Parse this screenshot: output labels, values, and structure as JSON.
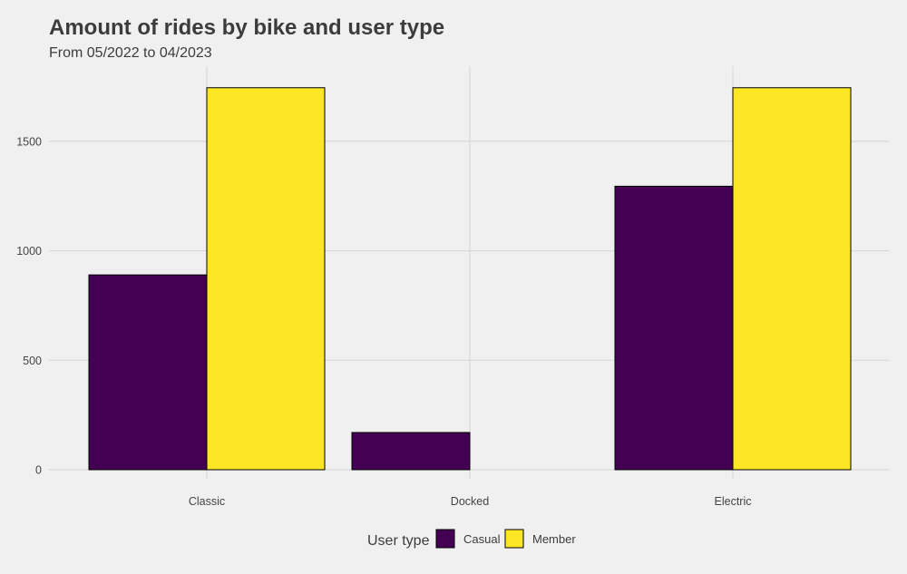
{
  "chart_data": {
    "type": "bar",
    "title": "Amount of rides by bike and user type",
    "subtitle": "From 05/2022 to 04/2023",
    "xlabel": "",
    "ylabel": "",
    "categories": [
      "Classic",
      "Docked",
      "Electric"
    ],
    "series": [
      {
        "name": "Casual",
        "color": "#440154",
        "values": [
          890,
          170,
          1295
        ]
      },
      {
        "name": "Member",
        "color": "#fde725",
        "values": [
          1745,
          0,
          1745
        ]
      }
    ],
    "ylim": [
      0,
      1800
    ],
    "yticks": [
      0,
      500,
      1000,
      1500
    ],
    "grid": true,
    "legend": {
      "title": "User type",
      "position": "bottom"
    }
  }
}
